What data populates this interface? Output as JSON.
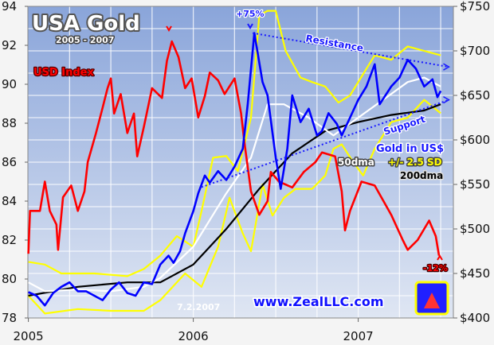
{
  "chart_data": {
    "type": "line",
    "title": "USA Gold",
    "subtitle": "2005 - 2007",
    "date_stamp": "7.2.2007",
    "watermark": "www.ZealLLC.com",
    "x_ticks": [
      "2005",
      "2006",
      "2007"
    ],
    "xlim": [
      2005,
      2007.6
    ],
    "left_axis": {
      "ylim": [
        78,
        94
      ],
      "ticks": [
        "78",
        "80",
        "82",
        "84",
        "86",
        "88",
        "90",
        "92",
        "94"
      ]
    },
    "right_axis": {
      "ylim": [
        400,
        750
      ],
      "ticks": [
        "$400",
        "$450",
        "$500",
        "$550",
        "$600",
        "$650",
        "$700",
        "$750"
      ]
    },
    "grid": true,
    "labels": {
      "usd": "USD Index",
      "gold": "Gold in US$",
      "dma50": "50dma",
      "sd": "+/- 2.5 SD",
      "dma200": "200dma",
      "resistance": "Resistance",
      "support": "Support",
      "gold_gain": "+75%",
      "usd_loss": "-12%"
    },
    "colors": {
      "usd": "#ff0000",
      "gold": "#0000ff",
      "dma50": "#ffffff",
      "dma200": "#000000",
      "bands": "#ffff00",
      "trend": "#1a1aff"
    },
    "series": [
      {
        "name": "USD Index",
        "axis": "left",
        "color": "#ff0000",
        "points": [
          [
            2005.0,
            81.3
          ],
          [
            2005.01,
            83.5
          ],
          [
            2005.07,
            83.5
          ],
          [
            2005.1,
            85
          ],
          [
            2005.13,
            83.5
          ],
          [
            2005.17,
            82.8
          ],
          [
            2005.18,
            81.5
          ],
          [
            2005.21,
            84.2
          ],
          [
            2005.26,
            84.8
          ],
          [
            2005.3,
            83.5
          ],
          [
            2005.34,
            84.5
          ],
          [
            2005.36,
            86
          ],
          [
            2005.41,
            87.5
          ],
          [
            2005.45,
            88.8
          ],
          [
            2005.48,
            89.8
          ],
          [
            2005.5,
            90.3
          ],
          [
            2005.52,
            88.5
          ],
          [
            2005.56,
            89.5
          ],
          [
            2005.6,
            87.5
          ],
          [
            2005.64,
            88.5
          ],
          [
            2005.66,
            86.3
          ],
          [
            2005.7,
            87.8
          ],
          [
            2005.75,
            89.8
          ],
          [
            2005.81,
            89.3
          ],
          [
            2005.84,
            91.2
          ],
          [
            2005.87,
            92.2
          ],
          [
            2005.91,
            91.4
          ],
          [
            2005.95,
            89.8
          ],
          [
            2005.99,
            90.3
          ],
          [
            2006.03,
            88.3
          ],
          [
            2006.07,
            89.4
          ],
          [
            2006.1,
            90.6
          ],
          [
            2006.15,
            90.2
          ],
          [
            2006.19,
            89.5
          ],
          [
            2006.25,
            90.3
          ],
          [
            2006.29,
            88.5
          ],
          [
            2006.31,
            87
          ],
          [
            2006.35,
            84.5
          ],
          [
            2006.4,
            83.3
          ],
          [
            2006.45,
            84
          ],
          [
            2006.47,
            85.5
          ],
          [
            2006.52,
            85
          ],
          [
            2006.6,
            84.7
          ],
          [
            2006.67,
            85.5
          ],
          [
            2006.74,
            86
          ],
          [
            2006.78,
            86.5
          ],
          [
            2006.86,
            86.3
          ],
          [
            2006.9,
            84.5
          ],
          [
            2006.92,
            82.5
          ],
          [
            2006.95,
            83.5
          ],
          [
            2007.02,
            85
          ],
          [
            2007.1,
            84.8
          ],
          [
            2007.2,
            83.3
          ],
          [
            2007.27,
            82
          ],
          [
            2007.3,
            81.5
          ],
          [
            2007.36,
            82
          ],
          [
            2007.43,
            83
          ],
          [
            2007.47,
            82.2
          ],
          [
            2007.49,
            81.2
          ]
        ]
      },
      {
        "name": "Gold in US$",
        "axis": "right",
        "color": "#0000ff",
        "points": [
          [
            2005.0,
            429
          ],
          [
            2005.05,
            425
          ],
          [
            2005.1,
            414
          ],
          [
            2005.15,
            428
          ],
          [
            2005.2,
            435
          ],
          [
            2005.25,
            440
          ],
          [
            2005.3,
            430
          ],
          [
            2005.35,
            430
          ],
          [
            2005.4,
            425
          ],
          [
            2005.45,
            420
          ],
          [
            2005.5,
            432
          ],
          [
            2005.55,
            440
          ],
          [
            2005.6,
            428
          ],
          [
            2005.65,
            425
          ],
          [
            2005.7,
            440
          ],
          [
            2005.75,
            438
          ],
          [
            2005.8,
            460
          ],
          [
            2005.85,
            470
          ],
          [
            2005.88,
            462
          ],
          [
            2005.92,
            475
          ],
          [
            2005.95,
            495
          ],
          [
            2006.0,
            520
          ],
          [
            2006.03,
            540
          ],
          [
            2006.07,
            560
          ],
          [
            2006.1,
            552
          ],
          [
            2006.15,
            565
          ],
          [
            2006.2,
            555
          ],
          [
            2006.25,
            570
          ],
          [
            2006.3,
            590
          ],
          [
            2006.33,
            640
          ],
          [
            2006.37,
            720
          ],
          [
            2006.42,
            665
          ],
          [
            2006.45,
            650
          ],
          [
            2006.5,
            580
          ],
          [
            2006.53,
            545
          ],
          [
            2006.57,
            590
          ],
          [
            2006.6,
            650
          ],
          [
            2006.65,
            620
          ],
          [
            2006.7,
            635
          ],
          [
            2006.75,
            605
          ],
          [
            2006.78,
            610
          ],
          [
            2006.82,
            630
          ],
          [
            2006.87,
            618
          ],
          [
            2006.9,
            605
          ],
          [
            2006.95,
            625
          ],
          [
            2007.0,
            645
          ],
          [
            2007.05,
            660
          ],
          [
            2007.1,
            685
          ],
          [
            2007.13,
            640
          ],
          [
            2007.2,
            660
          ],
          [
            2007.25,
            670
          ],
          [
            2007.3,
            690
          ],
          [
            2007.35,
            680
          ],
          [
            2007.4,
            660
          ],
          [
            2007.45,
            668
          ],
          [
            2007.48,
            648
          ],
          [
            2007.5,
            655
          ]
        ]
      },
      {
        "name": "50dma",
        "axis": "right",
        "color": "#ffffff",
        "points": [
          [
            2005.0,
            440
          ],
          [
            2005.1,
            430
          ],
          [
            2005.3,
            432
          ],
          [
            2005.5,
            430
          ],
          [
            2005.7,
            435
          ],
          [
            2005.8,
            445
          ],
          [
            2006.0,
            480
          ],
          [
            2006.2,
            540
          ],
          [
            2006.35,
            580
          ],
          [
            2006.45,
            640
          ],
          [
            2006.55,
            640
          ],
          [
            2006.7,
            625
          ],
          [
            2006.85,
            605
          ],
          [
            2007.0,
            625
          ],
          [
            2007.15,
            645
          ],
          [
            2007.3,
            665
          ],
          [
            2007.4,
            670
          ],
          [
            2007.5,
            660
          ]
        ]
      },
      {
        "name": "200dma",
        "axis": "right",
        "color": "#000000",
        "points": [
          [
            2005.0,
            425
          ],
          [
            2005.3,
            435
          ],
          [
            2005.6,
            440
          ],
          [
            2005.8,
            440
          ],
          [
            2006.0,
            460
          ],
          [
            2006.2,
            500
          ],
          [
            2006.4,
            545
          ],
          [
            2006.6,
            585
          ],
          [
            2006.8,
            610
          ],
          [
            2007.0,
            620
          ],
          [
            2007.2,
            628
          ],
          [
            2007.4,
            633
          ],
          [
            2007.5,
            640
          ]
        ]
      },
      {
        "name": "+/- 2.5 SD upper",
        "axis": "right",
        "color": "#ffff00",
        "points": [
          [
            2005.0,
            463
          ],
          [
            2005.1,
            460
          ],
          [
            2005.2,
            450
          ],
          [
            2005.4,
            450
          ],
          [
            2005.6,
            447
          ],
          [
            2005.7,
            455
          ],
          [
            2005.8,
            470
          ],
          [
            2005.9,
            492
          ],
          [
            2006.0,
            480
          ],
          [
            2006.05,
            520
          ],
          [
            2006.12,
            580
          ],
          [
            2006.2,
            582
          ],
          [
            2006.27,
            565
          ],
          [
            2006.35,
            625
          ],
          [
            2006.4,
            740
          ],
          [
            2006.45,
            745
          ],
          [
            2006.5,
            745
          ],
          [
            2006.56,
            700
          ],
          [
            2006.65,
            670
          ],
          [
            2006.72,
            665
          ],
          [
            2006.8,
            660
          ],
          [
            2006.88,
            642
          ],
          [
            2006.95,
            650
          ],
          [
            2007.05,
            680
          ],
          [
            2007.1,
            695
          ],
          [
            2007.2,
            690
          ],
          [
            2007.3,
            705
          ],
          [
            2007.4,
            700
          ],
          [
            2007.5,
            695
          ]
        ]
      },
      {
        "name": "+/- 2.5 SD lower",
        "axis": "right",
        "color": "#ffff00",
        "points": [
          [
            2005.0,
            425
          ],
          [
            2005.1,
            405
          ],
          [
            2005.3,
            410
          ],
          [
            2005.5,
            408
          ],
          [
            2005.7,
            408
          ],
          [
            2005.8,
            420
          ],
          [
            2005.9,
            440
          ],
          [
            2005.95,
            450
          ],
          [
            2006.05,
            435
          ],
          [
            2006.15,
            480
          ],
          [
            2006.22,
            535
          ],
          [
            2006.3,
            495
          ],
          [
            2006.35,
            475
          ],
          [
            2006.42,
            550
          ],
          [
            2006.48,
            515
          ],
          [
            2006.55,
            535
          ],
          [
            2006.62,
            545
          ],
          [
            2006.72,
            545
          ],
          [
            2006.8,
            560
          ],
          [
            2006.85,
            590
          ],
          [
            2006.9,
            595
          ],
          [
            2006.97,
            575
          ],
          [
            2007.03,
            560
          ],
          [
            2007.1,
            590
          ],
          [
            2007.2,
            620
          ],
          [
            2007.3,
            625
          ],
          [
            2007.4,
            645
          ],
          [
            2007.5,
            630
          ]
        ]
      }
    ],
    "trendlines": [
      {
        "name": "Resistance",
        "points": [
          [
            2006.36,
            720
          ],
          [
            2007.55,
            682
          ]
        ]
      },
      {
        "name": "Support",
        "points": [
          [
            2006.05,
            547
          ],
          [
            2007.55,
            645
          ]
        ]
      }
    ]
  }
}
